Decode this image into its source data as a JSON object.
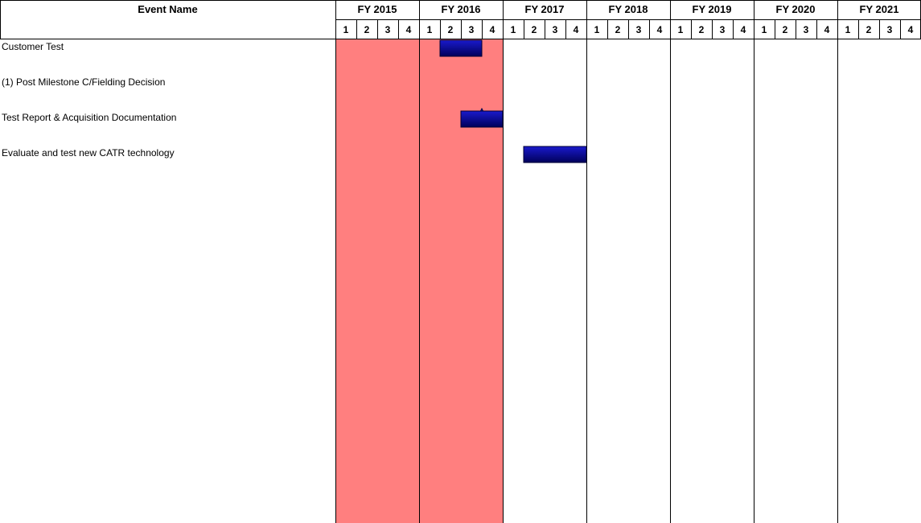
{
  "chart_data": {
    "type": "gantt",
    "header": {
      "event_name": "Event Name"
    },
    "fiscal_years": [
      "FY 2015",
      "FY 2016",
      "FY 2017",
      "FY 2018",
      "FY 2019",
      "FY 2020",
      "FY 2021"
    ],
    "quarters": [
      "1",
      "2",
      "3",
      "4"
    ],
    "shaded_periods": [
      {
        "start": "FY 2015 Q1",
        "end": "FY 2016 Q4",
        "color": "#ff7f7f"
      }
    ],
    "tasks": [
      {
        "name": "Customer Test",
        "kind": "bar",
        "start": "FY 2016 Q2",
        "end": "FY 2016 Q3"
      },
      {
        "name": "(1) Post Milestone C/Fielding Decision",
        "kind": "milestone",
        "at": "FY 2016 Q3 end",
        "label": "1"
      },
      {
        "name": "Test Report & Acquisition Documentation",
        "kind": "bar",
        "start": "FY 2016 Q3",
        "end": "FY 2016 Q4"
      },
      {
        "name": "Evaluate and test new CATR technology",
        "kind": "bar",
        "start": "FY 2017 Q2",
        "end": "FY 2017 Q4"
      }
    ],
    "colors": {
      "bar": "#00008b",
      "milestone": "#1a2acc",
      "shade": "#ff7f7f",
      "grid": "#000000"
    }
  }
}
